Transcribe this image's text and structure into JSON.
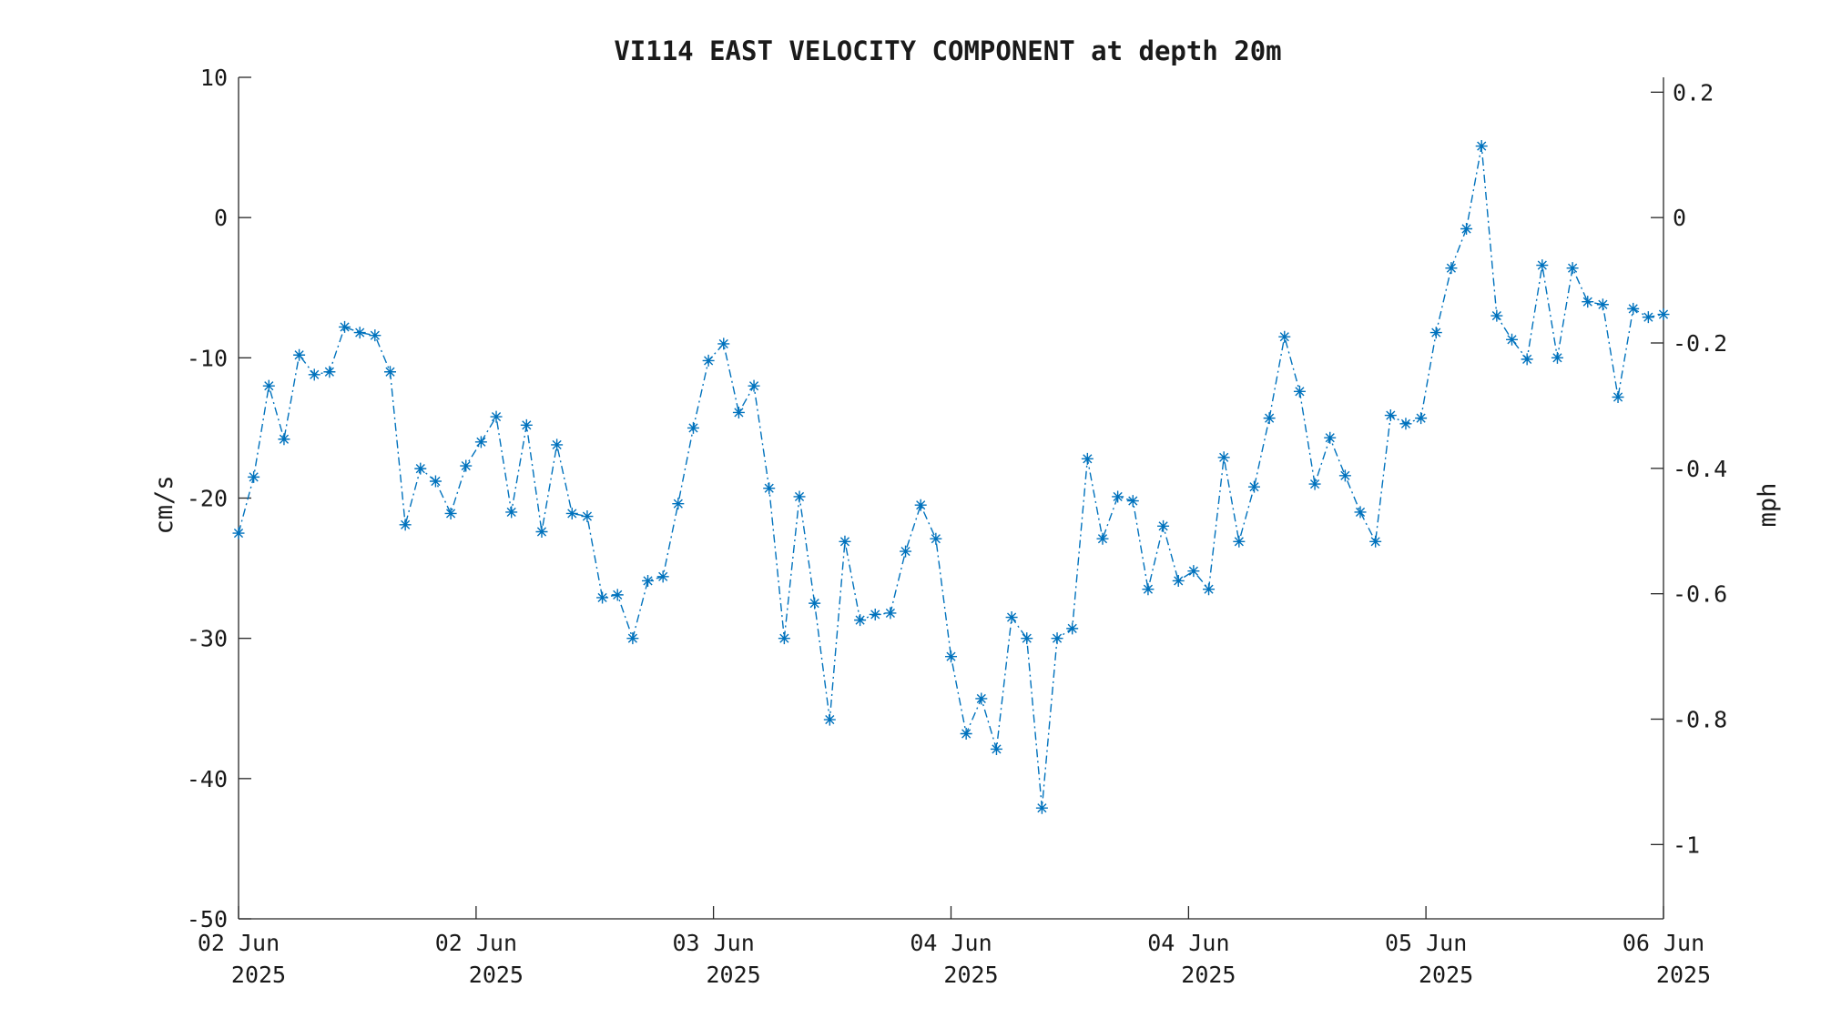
{
  "chart_data": {
    "type": "line",
    "title": "VI114 EAST VELOCITY COMPONENT at depth 20m",
    "ylabel": "cm/s",
    "y2label": "mph",
    "ylim": [
      -50,
      10
    ],
    "y2lim": [
      -1.1185,
      0.2237
    ],
    "y_ticks": [
      10,
      0,
      -10,
      -20,
      -30,
      -40,
      -50
    ],
    "y_tick_labels": [
      "10",
      "0",
      "-10",
      "-20",
      "-30",
      "-40",
      "-50"
    ],
    "y2_ticks": [
      0.2,
      0,
      -0.2,
      -0.4,
      -0.6,
      -0.8,
      -1
    ],
    "y2_tick_labels": [
      "0.2",
      "0",
      "-0.2",
      "-0.4",
      "-0.6",
      "-0.8",
      "-1"
    ],
    "x_ticks": [
      0,
      0.1667,
      0.3333,
      0.5,
      0.6667,
      0.8333,
      1
    ],
    "x_tick_labels": [
      [
        "02 Jun",
        "2025"
      ],
      [
        "02 Jun",
        "2025"
      ],
      [
        "03 Jun",
        "2025"
      ],
      [
        "04 Jun",
        "2025"
      ],
      [
        "04 Jun",
        "2025"
      ],
      [
        "05 Jun",
        "2025"
      ],
      [
        "06 Jun",
        "2025"
      ]
    ],
    "xlim": [
      0,
      1
    ],
    "grid": false,
    "line_style": "dash-dot",
    "marker": "asterisk",
    "series": [
      {
        "color": "#0072bd",
        "values": [
          -22.5,
          -18.5,
          -12.0,
          -15.8,
          -9.8,
          -11.2,
          -11.0,
          -7.8,
          -8.2,
          -8.4,
          -11.0,
          -21.9,
          -17.9,
          -18.8,
          -21.1,
          -17.7,
          -16.0,
          -14.2,
          -21.0,
          -14.8,
          -22.4,
          -16.2,
          -21.1,
          -21.3,
          -27.1,
          -26.9,
          -30.0,
          -25.9,
          -25.6,
          -20.4,
          -15.0,
          -10.2,
          -9.0,
          -13.9,
          -12.0,
          -19.3,
          -30.0,
          -19.9,
          -27.5,
          -35.8,
          -23.1,
          -28.7,
          -28.3,
          -28.2,
          -23.8,
          -20.5,
          -22.9,
          -31.3,
          -36.8,
          -34.3,
          -37.9,
          -28.5,
          -30.0,
          -42.1,
          -30.0,
          -29.3,
          -17.2,
          -22.9,
          -19.9,
          -20.2,
          -26.5,
          -22.0,
          -25.9,
          -25.2,
          -26.5,
          -17.1,
          -23.1,
          -19.2,
          -14.3,
          -8.5,
          -12.4,
          -19.0,
          -15.7,
          -18.4,
          -21.0,
          -23.1,
          -14.1,
          -14.7,
          -14.3,
          -8.2,
          -3.6,
          -0.8,
          5.1,
          -7.0,
          -8.7,
          -10.1,
          -3.4,
          -10.0,
          -3.6,
          -6.0,
          -6.2,
          -12.8,
          -6.5,
          -7.1,
          -6.9
        ]
      }
    ]
  }
}
